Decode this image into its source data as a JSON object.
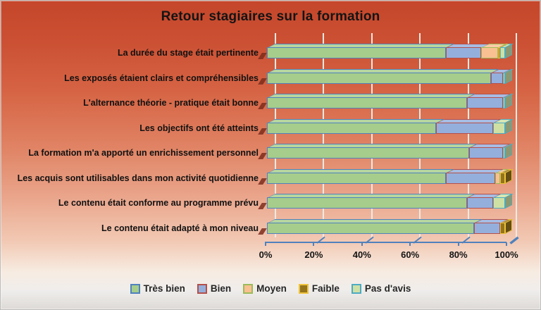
{
  "title": "Retour stagiaires sur la formation",
  "chart_data": {
    "type": "bar",
    "orientation": "horizontal",
    "stacked": true,
    "percent_stacked": true,
    "style_3d": true,
    "grid": true,
    "legend_position": "bottom",
    "xlim": [
      0,
      100
    ],
    "xtick_labels": [
      "0%",
      "20%",
      "40%",
      "60%",
      "80%",
      "100%"
    ],
    "axis_color": "#4f81bd",
    "gridline_color": "#efe9e4",
    "categories": [
      "La durée du stage était pertinente",
      "Les exposés étaient clairs et compréhensibles",
      "L'alternance théorie - pratique était bonne",
      "Les objectifs ont été atteints",
      "La formation m'a apporté un enrichissement personnel",
      "Les acquis sont utilisables dans mon activité quotidienne",
      "Le contenu était conforme au programme prévu",
      "Le contenu était adapté à mon niveau"
    ],
    "series": [
      {
        "name": "Très bien",
        "color": "#a6cd8b",
        "border": "#4f81bd",
        "values": [
          75,
          94,
          84,
          71,
          85,
          75,
          84,
          87
        ]
      },
      {
        "name": "Bien",
        "color": "#95afdd",
        "border": "#b4504a",
        "values": [
          15,
          5,
          15,
          24,
          14,
          21,
          11,
          11
        ]
      },
      {
        "name": "Moyen",
        "color": "#fac091",
        "border": "#9bbb59",
        "values": [
          7,
          0,
          0,
          0,
          0,
          2,
          0,
          0
        ]
      },
      {
        "name": "Faible",
        "color": "#94731d",
        "border": "#eec33c",
        "values": [
          1,
          0,
          0,
          0,
          0,
          2,
          0,
          2
        ]
      },
      {
        "name": "Pas d'avis",
        "color": "#cfe0a5",
        "border": "#4cabc2",
        "values": [
          2,
          1,
          1,
          5,
          1,
          0,
          5,
          0
        ]
      }
    ]
  }
}
